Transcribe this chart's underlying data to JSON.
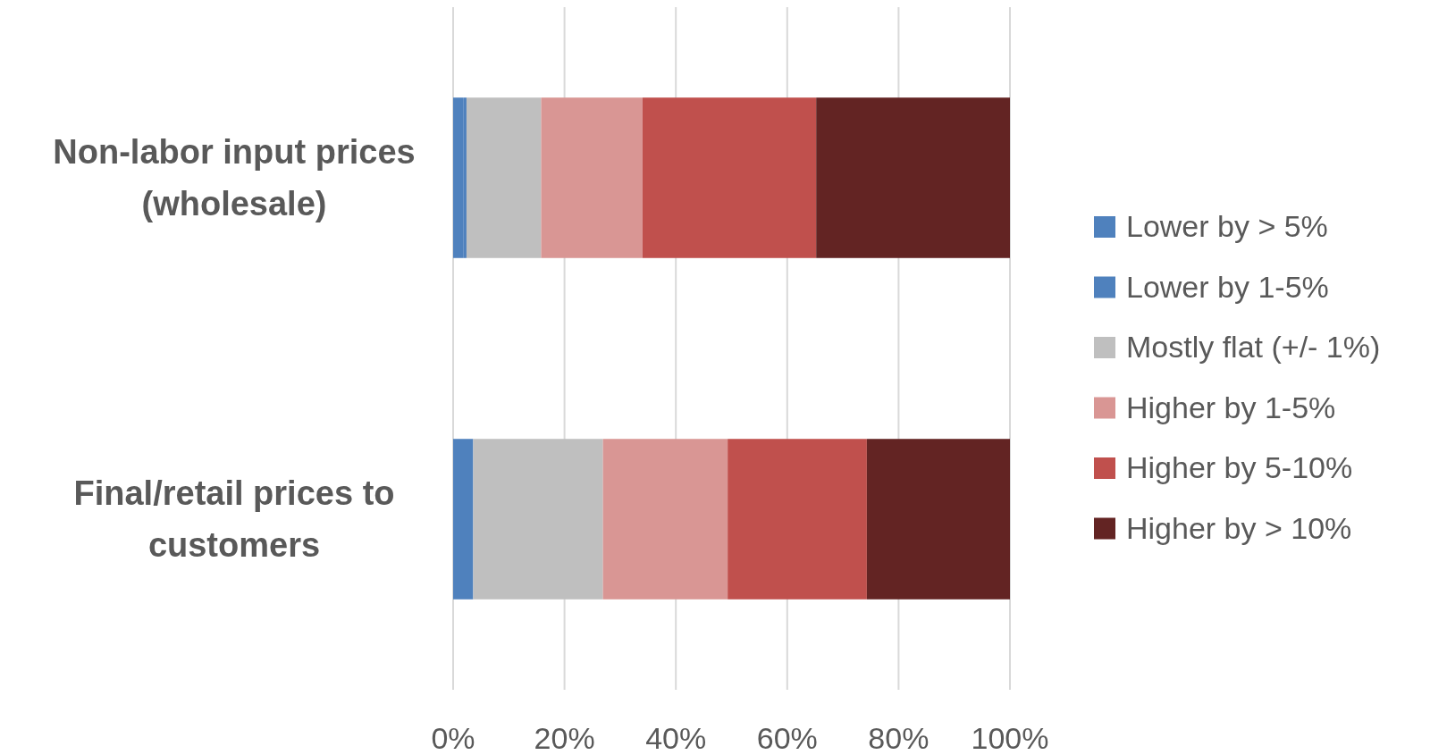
{
  "chart_data": {
    "type": "bar",
    "orientation": "horizontal",
    "stacked": true,
    "categories": [
      "Non-labor input prices (wholesale)",
      "Final/retail prices to customers"
    ],
    "series": [
      {
        "name": "Lower by > 5%",
        "color": "#4f81bd",
        "values": [
          1.8,
          0
        ]
      },
      {
        "name": "Lower by 1-5%",
        "color": "#4f81bd",
        "values": [
          0.6,
          3.6
        ]
      },
      {
        "name": "Mostly flat (+/- 1%)",
        "color": "#bfbfbf",
        "values": [
          13.4,
          23.3
        ]
      },
      {
        "name": "Higher by 1-5%",
        "color": "#d99694",
        "values": [
          18.2,
          22.4
        ]
      },
      {
        "name": "Higher by 5-10%",
        "color": "#c0504d",
        "values": [
          31.2,
          25.0
        ]
      },
      {
        "name": "Higher by > 10%",
        "color": "#632423",
        "values": [
          34.8,
          25.7
        ]
      }
    ],
    "xlim": [
      0,
      100
    ],
    "xticks": [
      {
        "value": 0,
        "label": "0%"
      },
      {
        "value": 20,
        "label": "20%"
      },
      {
        "value": 40,
        "label": "40%"
      },
      {
        "value": 60,
        "label": "60%"
      },
      {
        "value": 80,
        "label": "80%"
      },
      {
        "value": 100,
        "label": "100%"
      }
    ],
    "grid": "x",
    "legend": "right"
  }
}
